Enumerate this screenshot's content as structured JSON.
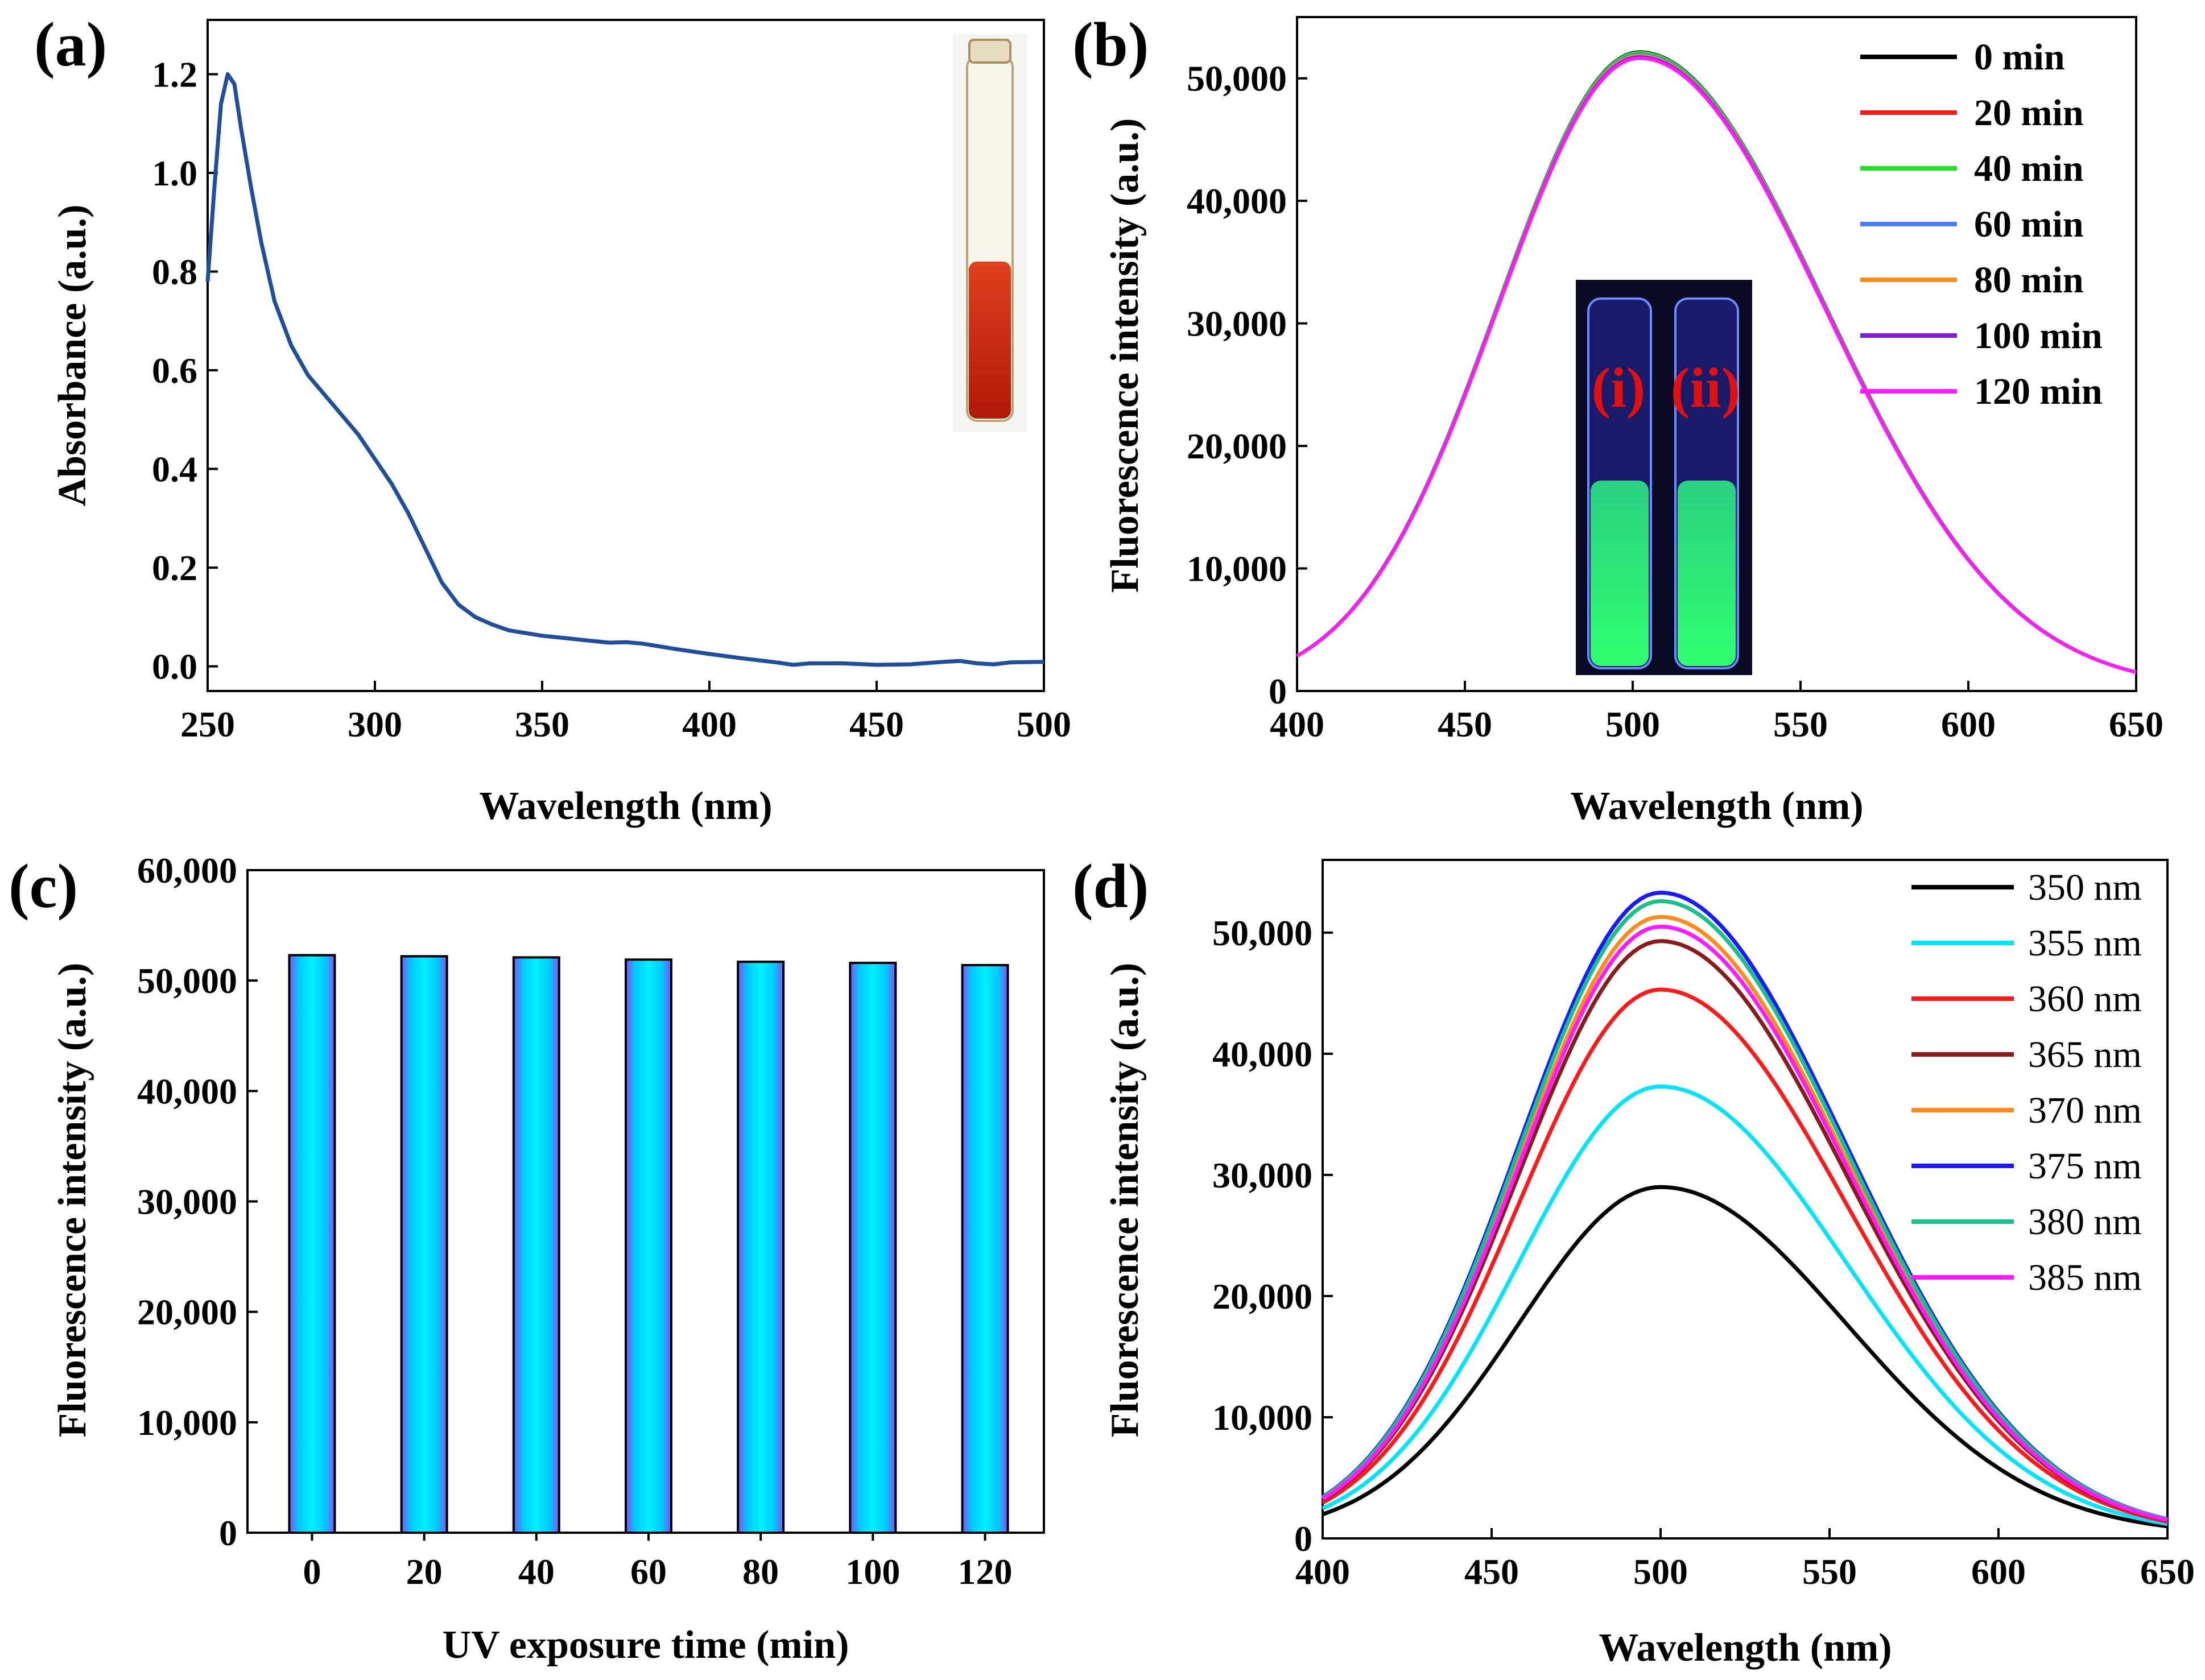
{
  "panels": {
    "a": {
      "label": "(a)",
      "chart_data": {
        "type": "line",
        "xlabel": "Wavelength (nm)",
        "ylabel": "Absorbance (a.u.)",
        "xlim": [
          250,
          500
        ],
        "ylim": [
          -0.05,
          1.31
        ],
        "xticks": [
          250,
          300,
          350,
          400,
          450,
          500
        ],
        "yticks": [
          0.0,
          0.2,
          0.4,
          0.6,
          0.8,
          1.0,
          1.2
        ],
        "ytick_labels": [
          "0.0",
          "0.2",
          "0.4",
          "0.6",
          "0.8",
          "1.0",
          "1.2"
        ],
        "series": [
          {
            "name": "absorbance",
            "color": "#1f4e9c",
            "points": [
              [
                250,
                0.78
              ],
              [
                252,
                0.97
              ],
              [
                254,
                1.14
              ],
              [
                256,
                1.2
              ],
              [
                258,
                1.18
              ],
              [
                260,
                1.09
              ],
              [
                263,
                0.97
              ],
              [
                266,
                0.86
              ],
              [
                270,
                0.74
              ],
              [
                275,
                0.65
              ],
              [
                280,
                0.59
              ],
              [
                285,
                0.55
              ],
              [
                290,
                0.51
              ],
              [
                295,
                0.47
              ],
              [
                300,
                0.42
              ],
              [
                305,
                0.37
              ],
              [
                310,
                0.31
              ],
              [
                315,
                0.24
              ],
              [
                320,
                0.17
              ],
              [
                325,
                0.125
              ],
              [
                330,
                0.1
              ],
              [
                335,
                0.085
              ],
              [
                340,
                0.073
              ],
              [
                350,
                0.062
              ],
              [
                360,
                0.055
              ],
              [
                370,
                0.048
              ],
              [
                375,
                0.049
              ],
              [
                380,
                0.046
              ],
              [
                390,
                0.035
              ],
              [
                400,
                0.025
              ],
              [
                410,
                0.016
              ],
              [
                420,
                0.008
              ],
              [
                425,
                0.003
              ],
              [
                430,
                0.006
              ],
              [
                440,
                0.006
              ],
              [
                450,
                0.003
              ],
              [
                460,
                0.004
              ],
              [
                470,
                0.009
              ],
              [
                475,
                0.011
              ],
              [
                480,
                0.006
              ],
              [
                485,
                0.004
              ],
              [
                490,
                0.008
              ],
              [
                500,
                0.009
              ]
            ]
          }
        ]
      }
    },
    "b": {
      "label": "(b)",
      "inset_labels": [
        "(i)",
        "(ii)"
      ],
      "chart_data": {
        "type": "line",
        "xlabel": "Wavelength (nm)",
        "ylabel": "Fluorescence intensity (a.u.)",
        "xlim": [
          400,
          650
        ],
        "ylim": [
          0,
          55000
        ],
        "xticks": [
          400,
          450,
          500,
          550,
          600,
          650
        ],
        "yticks": [
          0,
          10000,
          20000,
          30000,
          40000,
          50000
        ],
        "ytick_labels": [
          "0",
          "10,000",
          "20,000",
          "30,000",
          "40,000",
          "50,000"
        ],
        "legend": "top-right",
        "series": [
          {
            "name": "0 min",
            "color": "#000000",
            "peak": 52000
          },
          {
            "name": "20 min",
            "color": "#ff1a1a",
            "peak": 51900
          },
          {
            "name": "40 min",
            "color": "#22e022",
            "peak": 51950
          },
          {
            "name": "60 min",
            "color": "#4a7dff",
            "peak": 51800
          },
          {
            "name": "80 min",
            "color": "#ff8c1a",
            "peak": 51700
          },
          {
            "name": "100 min",
            "color": "#7a1fd6",
            "peak": 51600
          },
          {
            "name": "120 min",
            "color": "#ff1aff",
            "peak": 51500
          }
        ],
        "peak_center_nm": 502
      }
    },
    "c": {
      "label": "(c)",
      "chart_data": {
        "type": "bar",
        "xlabel": "UV exposure time (min)",
        "ylabel": "Fluorescence intensity (a.u.)",
        "categories": [
          "0",
          "20",
          "40",
          "60",
          "80",
          "100",
          "120"
        ],
        "values": [
          52300,
          52200,
          52100,
          51900,
          51700,
          51600,
          51400
        ],
        "ylim": [
          0,
          60000
        ],
        "yticks": [
          0,
          10000,
          20000,
          30000,
          40000,
          50000,
          60000
        ],
        "ytick_labels": [
          "0",
          "10,000",
          "20,000",
          "30,000",
          "40,000",
          "50,000",
          "60,000"
        ],
        "bar_colors": [
          "#00e5ff",
          "#8a4dff"
        ]
      }
    },
    "d": {
      "label": "(d)",
      "chart_data": {
        "type": "line",
        "xlabel": "Wavelength (nm)",
        "ylabel": "Fluorescence intensity (a.u.)",
        "xlim": [
          400,
          650
        ],
        "ylim": [
          0,
          56000
        ],
        "xticks": [
          400,
          450,
          500,
          550,
          600,
          650
        ],
        "yticks": [
          0,
          10000,
          20000,
          30000,
          40000,
          50000
        ],
        "ytick_labels": [
          "0",
          "10,000",
          "20,000",
          "30,000",
          "40,000",
          "50,000"
        ],
        "legend": "top-right",
        "peak_center_nm": 500,
        "series": [
          {
            "name": "350 nm",
            "color": "#000000",
            "peak": 28700
          },
          {
            "name": "355 nm",
            "color": "#00e5ff",
            "peak": 37000
          },
          {
            "name": "360 nm",
            "color": "#ff1a1a",
            "peak": 45000
          },
          {
            "name": "365 nm",
            "color": "#8b1a1a",
            "peak": 49000
          },
          {
            "name": "370 nm",
            "color": "#ff8c1a",
            "peak": 51000
          },
          {
            "name": "375 nm",
            "color": "#1a1aff",
            "peak": 53000
          },
          {
            "name": "380 nm",
            "color": "#1abf8c",
            "peak": 52300
          },
          {
            "name": "385 nm",
            "color": "#ff1aff",
            "peak": 50200
          }
        ]
      }
    }
  }
}
